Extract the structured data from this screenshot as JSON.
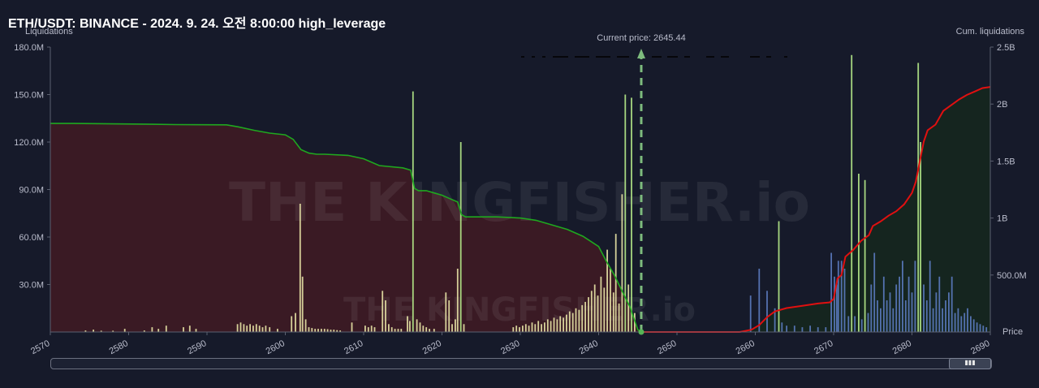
{
  "title": "ETH/USDT: BINANCE - 2024. 9. 24. 오전 8:00:00 high_leverage",
  "chart_data": {
    "type": "bar",
    "left_axis_label": "Liquidations",
    "right_axis_label": "Cum. liquidations",
    "x_axis_label": "Price",
    "xlim": [
      2570,
      2690
    ],
    "ylim_left": [
      0,
      180000000
    ],
    "ylim_right": [
      0,
      2500000000
    ],
    "x_ticks": [
      "2570",
      "2580",
      "2590",
      "2600",
      "2610",
      "2620",
      "2630",
      "2640",
      "2650",
      "2660",
      "2670",
      "2680",
      "2690"
    ],
    "y_ticks_left": [
      "180.0M",
      "150.0M",
      "120.0M",
      "90.0M",
      "60.0M",
      "30.0M"
    ],
    "y_ticks_right": [
      "2.5B",
      "2B",
      "1.5B",
      "1B",
      "500.0M"
    ],
    "current_price": 2645.44,
    "current_price_label": "Current price: 2645.44",
    "watermark": "THE KINGFISHER.io",
    "colors": {
      "short_fill": "#3a1a24",
      "long_fill": "#15251f",
      "left_cum_line": "#1fa81f",
      "right_cum_line": "#e01010",
      "bar_below": "#e8e4a6",
      "bar_tall": "#b6eb8a",
      "bar_above": "#5b7bbf",
      "current_price_line": "#7dbb7d"
    },
    "cumulative_left": [
      [
        2570.0,
        1830000000.0
      ],
      [
        2573,
        1830000000.0
      ],
      [
        2578,
        1826000000.0
      ],
      [
        2583,
        1823000000.0
      ],
      [
        2586,
        1820000000.0
      ],
      [
        2592.5,
        1818000000.0
      ],
      [
        2594,
        1800000000.0
      ],
      [
        2596,
        1770000000.0
      ],
      [
        2598,
        1745000000.0
      ],
      [
        2600,
        1730000000.0
      ],
      [
        2601,
        1690000000.0
      ],
      [
        2602,
        1600000000.0
      ],
      [
        2603,
        1570000000.0
      ],
      [
        2604,
        1560000000.0
      ],
      [
        2605,
        1560000000.0
      ],
      [
        2608,
        1550000000.0
      ],
      [
        2610,
        1520000000.0
      ],
      [
        2612,
        1460000000.0
      ],
      [
        2615,
        1440000000.0
      ],
      [
        2616,
        1420000000.0
      ],
      [
        2616.5,
        1260000000.0
      ],
      [
        2617,
        1240000000.0
      ],
      [
        2618,
        1240000000.0
      ],
      [
        2619,
        1220000000.0
      ],
      [
        2620,
        1200000000.0
      ],
      [
        2621,
        1170000000.0
      ],
      [
        2622,
        1140000000.0
      ],
      [
        2622.5,
        1030000000.0
      ],
      [
        2623,
        1010000000.0
      ],
      [
        2627,
        1010000000.0
      ],
      [
        2630,
        1000000000.0
      ],
      [
        2632,
        980000000.0
      ],
      [
        2634,
        940000000.0
      ],
      [
        2636,
        900000000.0
      ],
      [
        2638,
        840000000.0
      ],
      [
        2640,
        750000000.0
      ],
      [
        2641,
        620000000.0
      ],
      [
        2642,
        500000000.0
      ],
      [
        2643,
        360000000.0
      ],
      [
        2644,
        220000000.0
      ],
      [
        2644.6,
        100000000.0
      ],
      [
        2645.0,
        20000000.0
      ],
      [
        2645.44,
        0
      ]
    ],
    "cumulative_right": [
      [
        2645.44,
        0
      ],
      [
        2655,
        0
      ],
      [
        2658,
        0
      ],
      [
        2659.5,
        20000000.0
      ],
      [
        2660.5,
        60000000.0
      ],
      [
        2661.5,
        130000000.0
      ],
      [
        2662.5,
        180000000.0
      ],
      [
        2664,
        210000000.0
      ],
      [
        2666,
        230000000.0
      ],
      [
        2668,
        250000000.0
      ],
      [
        2669.5,
        260000000.0
      ],
      [
        2670,
        290000000.0
      ],
      [
        2670.5,
        470000000.0
      ],
      [
        2671,
        500000000.0
      ],
      [
        2671.5,
        660000000.0
      ],
      [
        2672.5,
        720000000.0
      ],
      [
        2673.5,
        800000000.0
      ],
      [
        2674.5,
        850000000.0
      ],
      [
        2675,
        930000000.0
      ],
      [
        2676,
        970000000.0
      ],
      [
        2677,
        1020000000.0
      ],
      [
        2678,
        1060000000.0
      ],
      [
        2679,
        1120000000.0
      ],
      [
        2680,
        1220000000.0
      ],
      [
        2680.5,
        1320000000.0
      ],
      [
        2681,
        1500000000.0
      ],
      [
        2681.5,
        1670000000.0
      ],
      [
        2682,
        1770000000.0
      ],
      [
        2683,
        1820000000.0
      ],
      [
        2684,
        1940000000.0
      ],
      [
        2685,
        1990000000.0
      ],
      [
        2686,
        2040000000.0
      ],
      [
        2687,
        2080000000.0
      ],
      [
        2688,
        2110000000.0
      ],
      [
        2689,
        2140000000.0
      ],
      [
        2690,
        2150000000.0
      ]
    ],
    "bars": [
      [
        2574.5,
        1000000.0
      ],
      [
        2575.5,
        1500000.0
      ],
      [
        2576.5,
        800000.0
      ],
      [
        2578,
        800000.0
      ],
      [
        2579.5,
        2000000.0
      ],
      [
        2582,
        1000000.0
      ],
      [
        2583,
        3000000.0
      ],
      [
        2583.8,
        2000000.0
      ],
      [
        2584.8,
        4000000.0
      ],
      [
        2587,
        3000000.0
      ],
      [
        2587.8,
        4000000.0
      ],
      [
        2588.6,
        2000000.0
      ],
      [
        2593.9,
        5000000.0
      ],
      [
        2594.3,
        6000000.0
      ],
      [
        2594.7,
        5000000.0
      ],
      [
        2595.1,
        4000000.0
      ],
      [
        2595.5,
        5000000.0
      ],
      [
        2595.9,
        4000000.0
      ],
      [
        2596.3,
        5000000.0
      ],
      [
        2596.7,
        4000000.0
      ],
      [
        2597.1,
        3000000.0
      ],
      [
        2597.5,
        4000000.0
      ],
      [
        2598.0,
        3000000.0
      ],
      [
        2599.0,
        2000000.0
      ],
      [
        2600.8,
        10000000.0
      ],
      [
        2601.3,
        12000000.0
      ],
      [
        2601.9,
        81000000.0
      ],
      [
        2602.2,
        35000000.0
      ],
      [
        2602.6,
        8000000.0
      ],
      [
        2603.0,
        3000000.0
      ],
      [
        2603.4,
        2500000.0
      ],
      [
        2603.8,
        2000000.0
      ],
      [
        2604.2,
        2000000.0
      ],
      [
        2604.6,
        2000000.0
      ],
      [
        2605.0,
        2000000.0
      ],
      [
        2605.4,
        1800000.0
      ],
      [
        2605.8,
        1500000.0
      ],
      [
        2606.2,
        1500000.0
      ],
      [
        2606.6,
        1200000.0
      ],
      [
        2607.0,
        1000000.0
      ],
      [
        2608.5,
        6000000.0
      ],
      [
        2610.2,
        4000000.0
      ],
      [
        2610.6,
        3000000.0
      ],
      [
        2611.0,
        4000000.0
      ],
      [
        2611.4,
        3000000.0
      ],
      [
        2612.4,
        26000000.0
      ],
      [
        2612.8,
        20000000.0
      ],
      [
        2613.2,
        5000000.0
      ],
      [
        2613.6,
        3000000.0
      ],
      [
        2614.0,
        2000000.0
      ],
      [
        2614.4,
        2000000.0
      ],
      [
        2614.8,
        2000000.0
      ],
      [
        2615.6,
        10000000.0
      ],
      [
        2615.9,
        7000000.0
      ],
      [
        2616.3,
        152000000.0
      ],
      [
        2616.8,
        8000000.0
      ],
      [
        2617.2,
        6000000.0
      ],
      [
        2617.6,
        4000000.0
      ],
      [
        2618.0,
        3000000.0
      ],
      [
        2618.4,
        2000000.0
      ],
      [
        2619.0,
        2000000.0
      ],
      [
        2620.5,
        25000000.0
      ],
      [
        2620.9,
        20000000.0
      ],
      [
        2621.3,
        5000000.0
      ],
      [
        2621.7,
        8000000.0
      ],
      [
        2622.0,
        40000000.0
      ],
      [
        2622.4,
        120000000.0
      ],
      [
        2622.8,
        5000000.0
      ],
      [
        2629.1,
        3000000.0
      ],
      [
        2629.5,
        4000000.0
      ],
      [
        2629.9,
        3000000.0
      ],
      [
        2630.3,
        4000000.0
      ],
      [
        2630.7,
        5000000.0
      ],
      [
        2631.1,
        4000000.0
      ],
      [
        2631.5,
        6000000.0
      ],
      [
        2631.9,
        5000000.0
      ],
      [
        2632.3,
        7000000.0
      ],
      [
        2632.7,
        5000000.0
      ],
      [
        2633.1,
        6000000.0
      ],
      [
        2633.5,
        8000000.0
      ],
      [
        2633.9,
        7000000.0
      ],
      [
        2634.3,
        9000000.0
      ],
      [
        2634.7,
        8000000.0
      ],
      [
        2635.1,
        10000000.0
      ],
      [
        2635.5,
        9000000.0
      ],
      [
        2635.9,
        11000000.0
      ],
      [
        2636.3,
        13000000.0
      ],
      [
        2636.7,
        12000000.0
      ],
      [
        2637.1,
        15000000.0
      ],
      [
        2637.5,
        14000000.0
      ],
      [
        2637.9,
        17000000.0
      ],
      [
        2638.3,
        19000000.0
      ],
      [
        2638.7,
        22000000.0
      ],
      [
        2639.1,
        26000000.0
      ],
      [
        2639.5,
        30000000.0
      ],
      [
        2639.9,
        23000000.0
      ],
      [
        2640.3,
        35000000.0
      ],
      [
        2640.7,
        28000000.0
      ],
      [
        2641.1,
        52000000.0
      ],
      [
        2641.5,
        40000000.0
      ],
      [
        2641.9,
        25000000.0
      ],
      [
        2642.2,
        62000000.0
      ],
      [
        2642.6,
        18000000.0
      ],
      [
        2643.0,
        87000000.0
      ],
      [
        2643.4,
        150000000.0
      ],
      [
        2643.8,
        30000000.0
      ],
      [
        2644.2,
        148000000.0
      ],
      [
        2644.6,
        12000000.0
      ],
      [
        2659.4,
        23000000.0
      ],
      [
        2660.5,
        40000000.0
      ],
      [
        2661.5,
        26000000.0
      ],
      [
        2662.5,
        15000000.0
      ],
      [
        2663.0,
        70000000.0
      ],
      [
        2663.4,
        6000000.0
      ],
      [
        2664,
        4000000.0
      ],
      [
        2665,
        4000000.0
      ],
      [
        2666,
        3000000.0
      ],
      [
        2667,
        4000000.0
      ],
      [
        2668,
        3000000.0
      ],
      [
        2669.0,
        3000000.0
      ],
      [
        2669.7,
        50000000.0
      ],
      [
        2670.1,
        35000000.0
      ],
      [
        2670.4,
        30000000.0
      ],
      [
        2670.6,
        45000000.0
      ],
      [
        2671.0,
        45000000.0
      ],
      [
        2671.4,
        40000000.0
      ],
      [
        2671.9,
        10000000.0
      ],
      [
        2672.3,
        175000000.0
      ],
      [
        2672.7,
        10000000.0
      ],
      [
        2673.2,
        100000000.0
      ],
      [
        2673.6,
        8000000.0
      ],
      [
        2674.0,
        96000000.0
      ],
      [
        2674.4,
        12000000.0
      ],
      [
        2674.8,
        30000000.0
      ],
      [
        2675.2,
        50000000.0
      ],
      [
        2675.6,
        20000000.0
      ],
      [
        2676.0,
        15000000.0
      ],
      [
        2676.4,
        35000000.0
      ],
      [
        2676.8,
        20000000.0
      ],
      [
        2677.2,
        25000000.0
      ],
      [
        2677.6,
        15000000.0
      ],
      [
        2678.0,
        30000000.0
      ],
      [
        2678.4,
        35000000.0
      ],
      [
        2678.8,
        45000000.0
      ],
      [
        2679.2,
        20000000.0
      ],
      [
        2679.6,
        35000000.0
      ],
      [
        2680.0,
        25000000.0
      ],
      [
        2680.4,
        45000000.0
      ],
      [
        2680.8,
        170000000.0
      ],
      [
        2681.1,
        120000000.0
      ],
      [
        2681.5,
        30000000.0
      ],
      [
        2681.9,
        20000000.0
      ],
      [
        2682.3,
        45000000.0
      ],
      [
        2682.7,
        15000000.0
      ],
      [
        2683.1,
        25000000.0
      ],
      [
        2683.5,
        35000000.0
      ],
      [
        2683.9,
        15000000.0
      ],
      [
        2684.3,
        20000000.0
      ],
      [
        2684.7,
        25000000.0
      ],
      [
        2685.1,
        35000000.0
      ],
      [
        2685.5,
        12000000.0
      ],
      [
        2685.9,
        15000000.0
      ],
      [
        2686.3,
        10000000.0
      ],
      [
        2686.7,
        12000000.0
      ],
      [
        2687.1,
        15000000.0
      ],
      [
        2687.5,
        10000000.0
      ],
      [
        2687.9,
        8000000.0
      ],
      [
        2688.3,
        6000000.0
      ],
      [
        2688.7,
        5000000.0
      ],
      [
        2689.1,
        4000000.0
      ],
      [
        2689.5,
        3000000.0
      ]
    ]
  }
}
